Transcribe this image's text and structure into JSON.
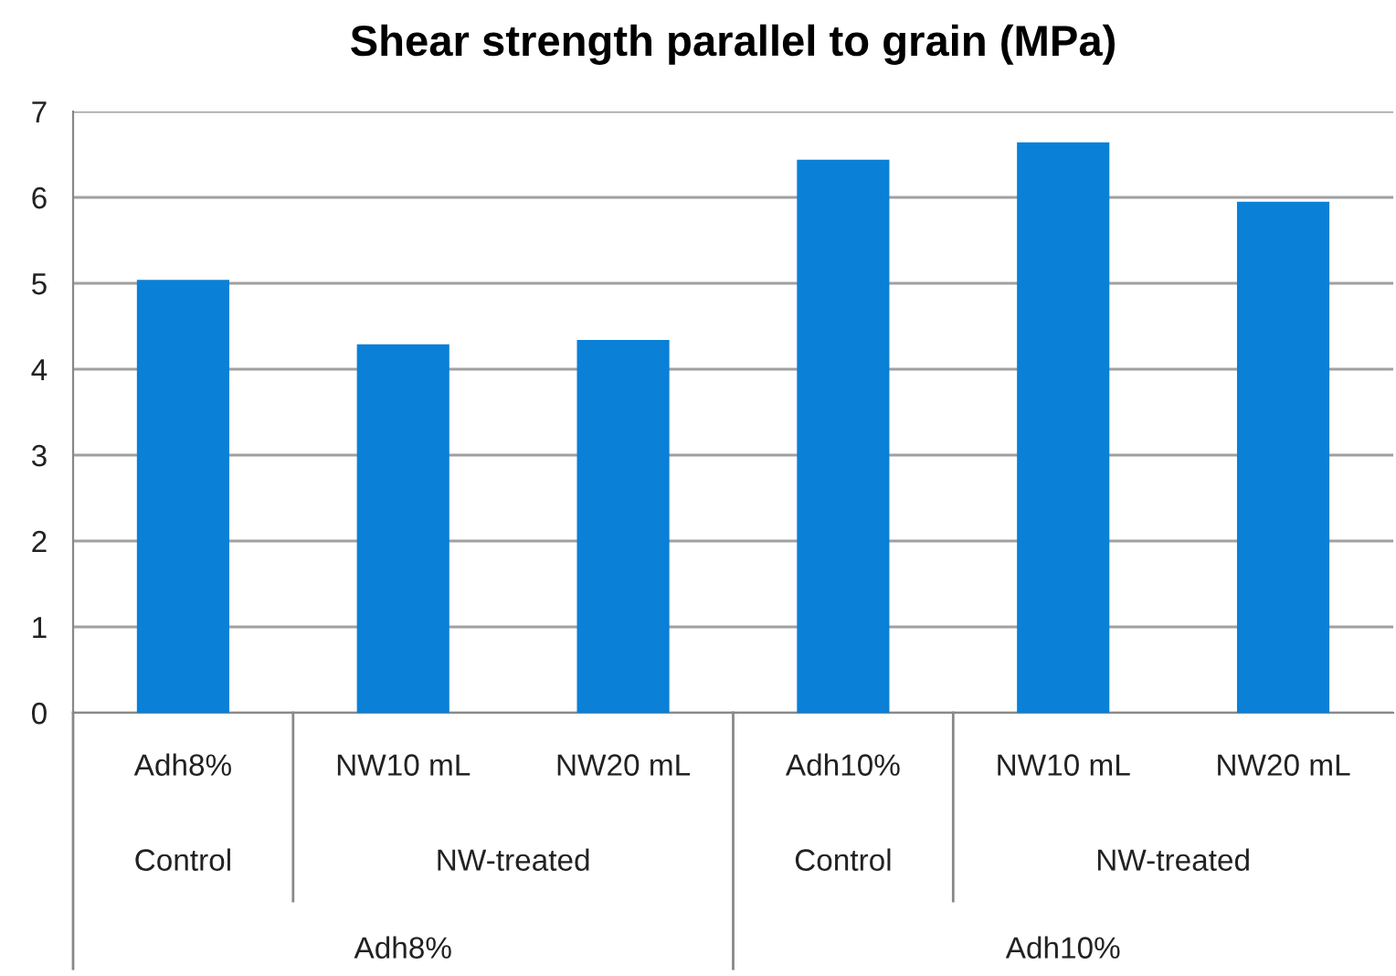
{
  "chart_data": {
    "type": "bar",
    "title": "Shear strength parallel to grain (MPa)",
    "categories": [
      "Adh8%",
      "NW10 mL",
      "NW20 mL",
      "Adh10%",
      "NW10 mL",
      "NW20 mL"
    ],
    "values": [
      5.04,
      4.29,
      4.34,
      6.44,
      6.64,
      5.95
    ],
    "color": "#0a80d6",
    "ylim": [
      0,
      7
    ],
    "yticks": [
      0,
      1,
      2,
      3,
      4,
      5,
      6,
      7
    ],
    "grid": "y",
    "annotations": [
      "Control",
      "NW-treated",
      "Control",
      "NW-treated",
      "Adh8%",
      "Adh10%"
    ]
  }
}
